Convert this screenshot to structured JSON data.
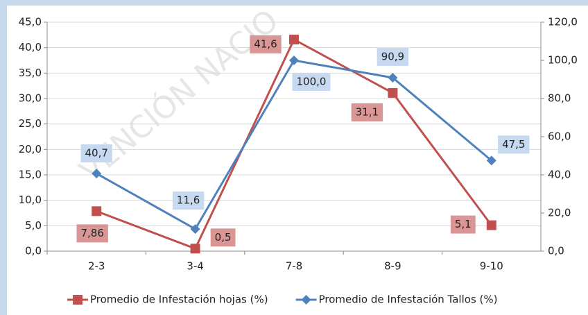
{
  "chart_data": {
    "type": "line",
    "watermark": "VENCIÓN NACIO",
    "categories": [
      "2-3",
      "3-4",
      "7-8",
      "8-9",
      "9-10"
    ],
    "series": [
      {
        "name": "Promedio de Infestación hojas (%)",
        "color": "#c0504d",
        "marker": "square",
        "values": [
          7.86,
          0.5,
          41.6,
          31.1,
          5.1
        ],
        "value_labels": [
          "7,86",
          "0,5",
          "41,6",
          "31,1",
          "5,1"
        ]
      },
      {
        "name": "Promedio de Infestación Tallos (%)",
        "color": "#4f81bd",
        "marker": "diamond",
        "axis": "y2",
        "values": [
          40.7,
          11.6,
          100.0,
          90.9,
          47.5
        ],
        "value_labels": [
          "40,7",
          "11,6",
          "100,0",
          "90,9",
          "47,5"
        ]
      }
    ],
    "ylim": [
      0,
      45
    ],
    "yticks": [
      {
        "value": 0,
        "label": "0,0"
      },
      {
        "value": 5,
        "label": "5,0"
      },
      {
        "value": 10,
        "label": "10,0"
      },
      {
        "value": 15,
        "label": "15,0"
      },
      {
        "value": 20,
        "label": "20,0"
      },
      {
        "value": 25,
        "label": "25,0"
      },
      {
        "value": 30,
        "label": "30,0"
      },
      {
        "value": 35,
        "label": "35,0"
      },
      {
        "value": 40,
        "label": "40,0"
      },
      {
        "value": 45,
        "label": "45,0"
      }
    ],
    "y2lim": [
      0,
      120
    ],
    "y2ticks": [
      {
        "value": 0,
        "label": "0,0"
      },
      {
        "value": 20,
        "label": "20,0"
      },
      {
        "value": 40,
        "label": "40,0"
      },
      {
        "value": 60,
        "label": "60,0"
      },
      {
        "value": 80,
        "label": "80,0"
      },
      {
        "value": 100,
        "label": "100,0"
      },
      {
        "value": 120,
        "label": "120,0"
      }
    ],
    "grid": true,
    "legend": "bottom"
  }
}
